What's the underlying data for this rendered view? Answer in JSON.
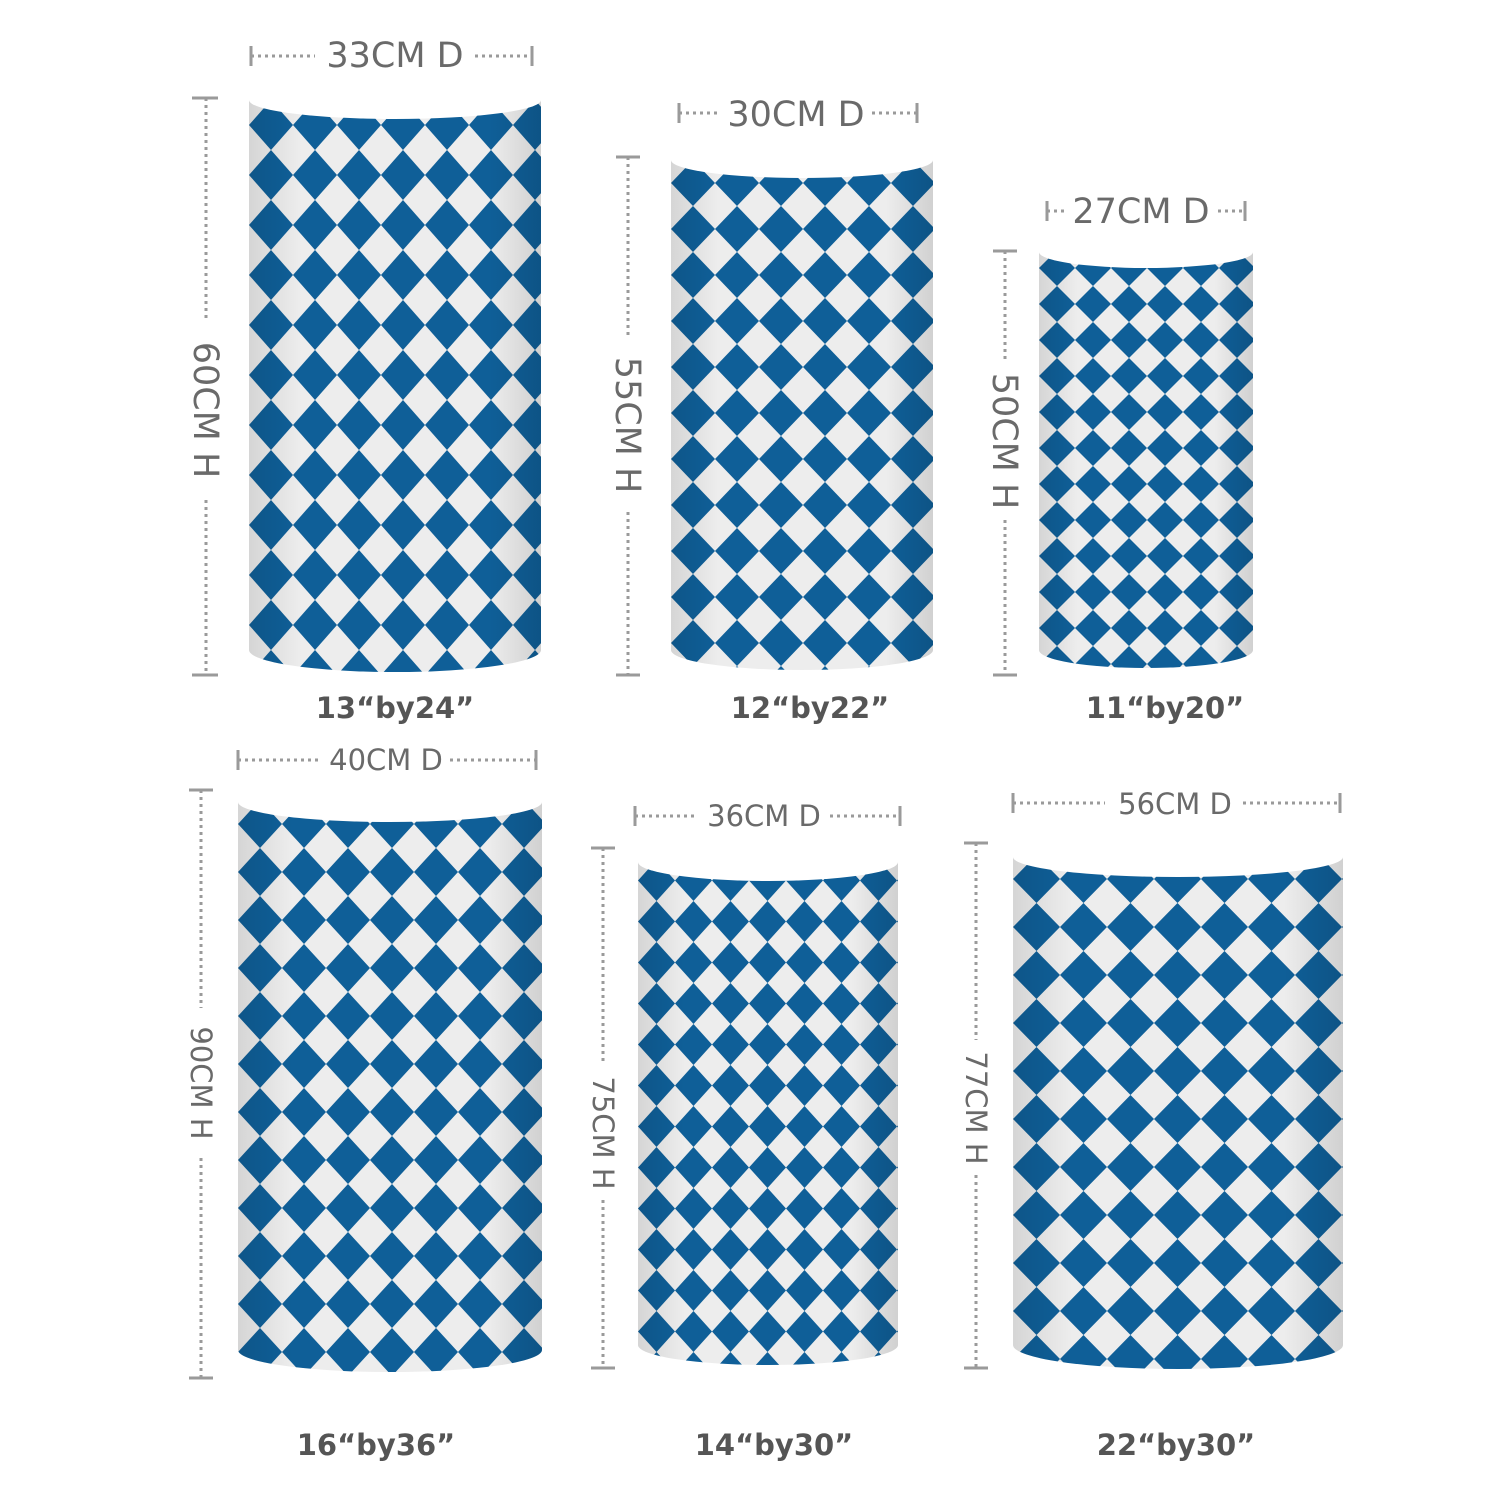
{
  "colors": {
    "pattern_blue": "#0f5f98",
    "pattern_light": "#ededed",
    "top_face": "#ffffff",
    "dimension_line": "#9a9a9a",
    "dimension_text": "#6a6a6a",
    "size_label": "#555555"
  },
  "cylinders": [
    {
      "diameter_label": "33CM D",
      "height_label": "60CM H",
      "size_label": "13“by24”"
    },
    {
      "diameter_label": "30CM D",
      "height_label": "55CM H",
      "size_label": "12“by22”"
    },
    {
      "diameter_label": "27CM D",
      "height_label": "50CM H",
      "size_label": "11“by20”"
    },
    {
      "diameter_label": "40CM D",
      "height_label": "90CM H",
      "size_label": "16“by36”"
    },
    {
      "diameter_label": "36CM D",
      "height_label": "75CM H",
      "size_label": "14“by30”"
    },
    {
      "diameter_label": "56CM D",
      "height_label": "77CM H",
      "size_label": "22“by30”"
    }
  ]
}
